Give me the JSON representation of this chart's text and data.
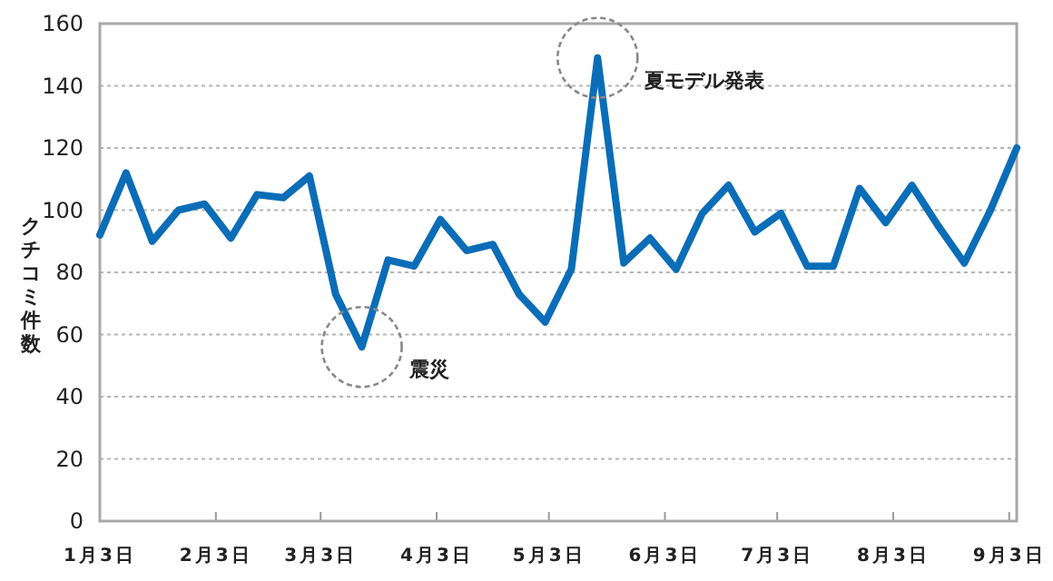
{
  "chart_data": {
    "type": "line",
    "ylabel": "クチコミ件数",
    "x": [
      "--01-03",
      "--01-10",
      "--01-17",
      "--01-24",
      "--01-31",
      "--02-07",
      "--02-14",
      "--02-21",
      "--02-28",
      "--03-07",
      "--03-14",
      "--03-21",
      "--03-28",
      "--04-04",
      "--04-11",
      "--04-18",
      "--04-25",
      "--05-02",
      "--05-09",
      "--05-16",
      "--05-23",
      "--05-30",
      "--06-06",
      "--06-13",
      "--06-20",
      "--06-27",
      "--07-04",
      "--07-11",
      "--07-18",
      "--07-25",
      "--08-01",
      "--08-08",
      "--08-15",
      "--08-22",
      "--08-29",
      "--09-05"
    ],
    "series": [
      {
        "color": "#0b6db7",
        "values": [
          92,
          112,
          90,
          100,
          102,
          91,
          105,
          104,
          111,
          73,
          56,
          84,
          82,
          97,
          87,
          89,
          73,
          64,
          81,
          149,
          83,
          91,
          81,
          99,
          108,
          93,
          99,
          82,
          82,
          107,
          96,
          108,
          95,
          83,
          100,
          120
        ]
      }
    ],
    "xlim": [
      "--01-03",
      "--09-05"
    ],
    "xticks": [
      {
        "value": "--01-03",
        "label": "1月3日"
      },
      {
        "value": "--02-03",
        "label": "2月3日"
      },
      {
        "value": "--03-03",
        "label": "3月3日"
      },
      {
        "value": "--04-03",
        "label": "4月3日"
      },
      {
        "value": "--05-03",
        "label": "5月3日"
      },
      {
        "value": "--06-03",
        "label": "6月3日"
      },
      {
        "value": "--07-03",
        "label": "7月3日"
      },
      {
        "value": "--08-03",
        "label": "8月3日"
      },
      {
        "value": "--09-03",
        "label": "9月3日"
      }
    ],
    "ylim": [
      0,
      160
    ],
    "yticks": [
      0,
      20,
      40,
      60,
      80,
      100,
      120,
      140,
      160
    ],
    "grid": "y",
    "annotations": [
      {
        "text": "震災",
        "x": "--03-14",
        "y": 56
      },
      {
        "text": "夏モデル発表",
        "x": "--05-16",
        "y": 149
      }
    ]
  }
}
